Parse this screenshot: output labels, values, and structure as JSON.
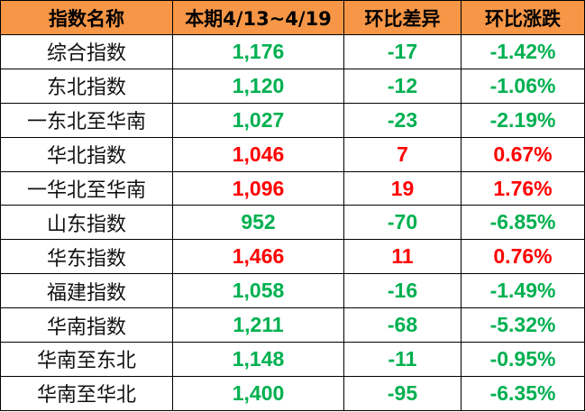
{
  "colors": {
    "header_bg": "#F79646",
    "up": "#FF0000",
    "down": "#00B050"
  },
  "headers": [
    "指数名称",
    "本期4/13~4/19",
    "环比差异",
    "环比涨跌"
  ],
  "rows": [
    {
      "name": "综合指数",
      "value": "1,176",
      "diff": "-17",
      "pct": "-1.42%",
      "trend": "down"
    },
    {
      "name": "东北指数",
      "value": "1,120",
      "diff": "-12",
      "pct": "-1.06%",
      "trend": "down"
    },
    {
      "name": "一东北至华南",
      "value": "1,027",
      "diff": "-23",
      "pct": "-2.19%",
      "trend": "down"
    },
    {
      "name": "华北指数",
      "value": "1,046",
      "diff": "7",
      "pct": "0.67%",
      "trend": "up"
    },
    {
      "name": "一华北至华南",
      "value": "1,096",
      "diff": "19",
      "pct": "1.76%",
      "trend": "up"
    },
    {
      "name": "山东指数",
      "value": "952",
      "diff": "-70",
      "pct": "-6.85%",
      "trend": "down"
    },
    {
      "name": "华东指数",
      "value": "1,466",
      "diff": "11",
      "pct": "0.76%",
      "trend": "up"
    },
    {
      "name": "福建指数",
      "value": "1,058",
      "diff": "-16",
      "pct": "-1.49%",
      "trend": "down"
    },
    {
      "name": "华南指数",
      "value": "1,211",
      "diff": "-68",
      "pct": "-5.32%",
      "trend": "down"
    },
    {
      "name": "华南至东北",
      "value": "1,148",
      "diff": "-11",
      "pct": "-0.95%",
      "trend": "down"
    },
    {
      "name": "华南至华北",
      "value": "1,400",
      "diff": "-95",
      "pct": "-6.35%",
      "trend": "down"
    }
  ]
}
